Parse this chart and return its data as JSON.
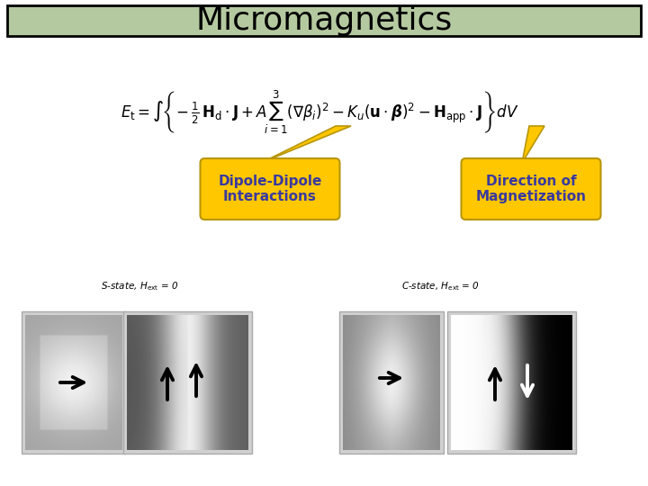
{
  "title": "Micromagnetics",
  "title_bg": "#b5c9a0",
  "title_fontsize": 26,
  "label1": "Dipole-Dipole\nInteractions",
  "label2": "Direction of\nMagnetization",
  "label_color": "#3a3a9f",
  "label_bg": "#ffc700",
  "label_fontsize": 11,
  "bg_color": "#ffffff",
  "s_label": "S-state, H",
  "c_label": "C-state, H",
  "panel1_bg": "#c8c8c8",
  "panel2_bg": "#707070",
  "panel3_bg": "#c8c8c8",
  "panel4_bg": "#707070"
}
